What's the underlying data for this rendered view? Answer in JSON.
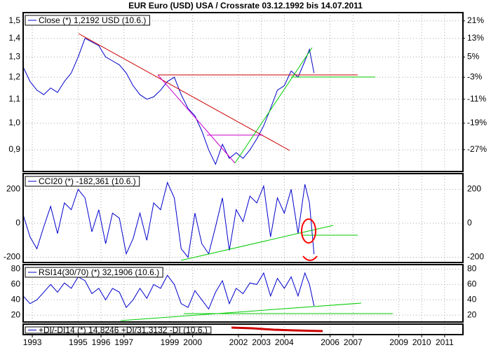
{
  "chart_data": [
    {
      "type": "line",
      "title": "EUR Euro (USD) USA / Crossrate 03.12.1992 bis 14.07.2011",
      "log_y": true,
      "y2_log": true,
      "grid": true,
      "xlim": [
        1992.6,
        2011.8
      ],
      "xticks": [
        1993,
        1995,
        1996,
        1997,
        1999,
        2000,
        2002,
        2003,
        2004,
        2006,
        2007,
        2009,
        2010,
        2011
      ],
      "x": [
        1992.6,
        1992.9,
        1993.2,
        1993.5,
        1993.8,
        1994.1,
        1994.4,
        1994.7,
        1995.0,
        1995.3,
        1995.6,
        1995.9,
        1996.2,
        1996.5,
        1996.8,
        1997.1,
        1997.4,
        1997.7,
        1998.0,
        1998.3,
        1998.6,
        1998.9,
        1999.2,
        1999.5,
        1999.8,
        2000.1,
        2000.4,
        2000.7,
        2001.0,
        2001.3,
        2001.6,
        2001.9,
        2002.2,
        2002.5,
        2002.8,
        2003.1,
        2003.4,
        2003.7,
        2004.0,
        2004.3,
        2004.6,
        2004.9,
        2005.1,
        2005.3
      ],
      "ylim": [
        0.826,
        1.55
      ],
      "yticks": [
        {
          "value": 0.9,
          "label": "0,9"
        },
        {
          "value": 1.0,
          "label": "1,0"
        },
        {
          "value": 1.1,
          "label": "1,1"
        },
        {
          "value": 1.2,
          "label": "1,2"
        },
        {
          "value": 1.3,
          "label": "1,3"
        },
        {
          "value": 1.4,
          "label": "1,4"
        },
        {
          "value": 1.5,
          "label": "1,5"
        }
      ],
      "y2lim": [
        -33,
        25
      ],
      "y2ticks": [
        {
          "value": -27,
          "label": "-27%"
        },
        {
          "value": -19,
          "label": "-19%"
        },
        {
          "value": -11,
          "label": "-11%"
        },
        {
          "value": -3,
          "label": "-3%"
        },
        {
          "value": 5,
          "label": "5%"
        },
        {
          "value": 13,
          "label": "13%"
        },
        {
          "value": 21,
          "label": "21%"
        }
      ],
      "series": [
        {
          "name": "Close (*) 1,2192 USD (10.6.)",
          "color": "#0000cc",
          "values": [
            1.25,
            1.18,
            1.14,
            1.12,
            1.15,
            1.13,
            1.18,
            1.22,
            1.3,
            1.4,
            1.38,
            1.36,
            1.3,
            1.28,
            1.26,
            1.22,
            1.16,
            1.12,
            1.1,
            1.11,
            1.14,
            1.18,
            1.2,
            1.12,
            1.06,
            1.03,
            0.97,
            0.9,
            0.85,
            0.92,
            0.87,
            0.89,
            0.87,
            0.9,
            0.94,
            0.99,
            1.06,
            1.14,
            1.16,
            1.23,
            1.2,
            1.28,
            1.34,
            1.22
          ]
        }
      ]
    },
    {
      "type": "line",
      "grid": true,
      "x": [
        1992.6,
        1992.9,
        1993.2,
        1993.5,
        1993.8,
        1994.1,
        1994.4,
        1994.7,
        1995.0,
        1995.3,
        1995.6,
        1995.9,
        1996.2,
        1996.5,
        1996.8,
        1997.1,
        1997.4,
        1997.7,
        1998.0,
        1998.3,
        1998.6,
        1998.9,
        1999.2,
        1999.5,
        1999.8,
        2000.1,
        2000.4,
        2000.7,
        2001.0,
        2001.3,
        2001.6,
        2001.9,
        2002.2,
        2002.5,
        2002.8,
        2003.1,
        2003.4,
        2003.7,
        2004.0,
        2004.3,
        2004.6,
        2004.9,
        2005.1,
        2005.3
      ],
      "ylim": [
        -231,
        293
      ],
      "yticks": [
        -200,
        0,
        200
      ],
      "series": [
        {
          "name": "CCI20 (*) -182,361 (10.6.)",
          "color": "#0000cc",
          "values": [
            50,
            -80,
            -150,
            -20,
            100,
            -60,
            120,
            80,
            200,
            150,
            -50,
            80,
            -120,
            60,
            30,
            -180,
            -90,
            60,
            -100,
            120,
            80,
            240,
            150,
            -150,
            -200,
            60,
            -120,
            -180,
            -20,
            150,
            -160,
            80,
            10,
            160,
            120,
            220,
            -80,
            150,
            60,
            200,
            -60,
            230,
            120,
            -182
          ]
        }
      ]
    },
    {
      "type": "line",
      "grid": true,
      "x": [
        1992.6,
        1992.9,
        1993.2,
        1993.5,
        1993.8,
        1994.1,
        1994.4,
        1994.7,
        1995.0,
        1995.3,
        1995.6,
        1995.9,
        1996.2,
        1996.5,
        1996.8,
        1997.1,
        1997.4,
        1997.7,
        1998.0,
        1998.3,
        1998.6,
        1998.9,
        1999.2,
        1999.5,
        1999.8,
        2000.1,
        2000.4,
        2000.7,
        2001.0,
        2001.3,
        2001.6,
        2001.9,
        2002.2,
        2002.5,
        2002.8,
        2003.1,
        2003.4,
        2003.7,
        2004.0,
        2004.3,
        2004.6,
        2004.9,
        2005.1,
        2005.3
      ],
      "ylim": [
        11,
        86
      ],
      "yticks": [
        20,
        40,
        60,
        80
      ],
      "series": [
        {
          "name": "RSI14(30/70) (*) 32,1906 (10.6.)",
          "color": "#0000cc",
          "values": [
            45,
            35,
            40,
            50,
            60,
            50,
            62,
            55,
            70,
            65,
            48,
            55,
            40,
            55,
            50,
            30,
            40,
            55,
            42,
            60,
            55,
            72,
            60,
            35,
            30,
            52,
            40,
            28,
            50,
            65,
            35,
            55,
            48,
            62,
            60,
            75,
            45,
            68,
            55,
            70,
            45,
            75,
            60,
            32
          ]
        }
      ]
    },
    {
      "type": "line",
      "series": [
        {
          "name": "+DI/-DI14 (*) 14,8246 +DI/31,3132 -DI (10.6.)",
          "color": "#0000cc"
        }
      ]
    }
  ]
}
